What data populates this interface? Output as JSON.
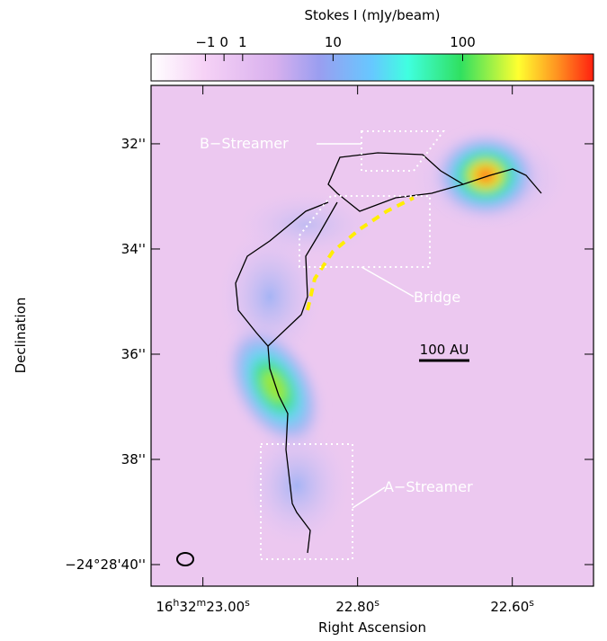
{
  "chart_data": {
    "type": "image",
    "colorbar_label": "Stokes I (mJy/beam)",
    "colorbar_scale": "asinh",
    "clim": [
      -5,
      1000
    ],
    "cticks": [
      {
        "value": -1,
        "label": "−1"
      },
      0,
      1,
      10,
      100
    ],
    "x_label": "Right Ascension",
    "y_label": "Declination",
    "xlim": [
      23.067,
      22.495
    ],
    "ylim": [
      30.89,
      40.41
    ],
    "xticks": [
      {
        "value": 23.0,
        "label": "16h32m23.00s"
      },
      {
        "value": 22.8,
        "label": "22.80s"
      },
      {
        "value": 22.6,
        "label": "22.60s"
      }
    ],
    "yticks": [
      {
        "value": 32,
        "label": "32''"
      },
      {
        "value": 34,
        "label": "34''"
      },
      {
        "value": 36,
        "label": "36''"
      },
      {
        "value": 38,
        "label": "38''"
      },
      {
        "value": 40,
        "label": "−24°28'40''"
      }
    ],
    "annotations": [
      "B−Streamer",
      "Bridge",
      "A−Streamer",
      "100 AU"
    ]
  }
}
